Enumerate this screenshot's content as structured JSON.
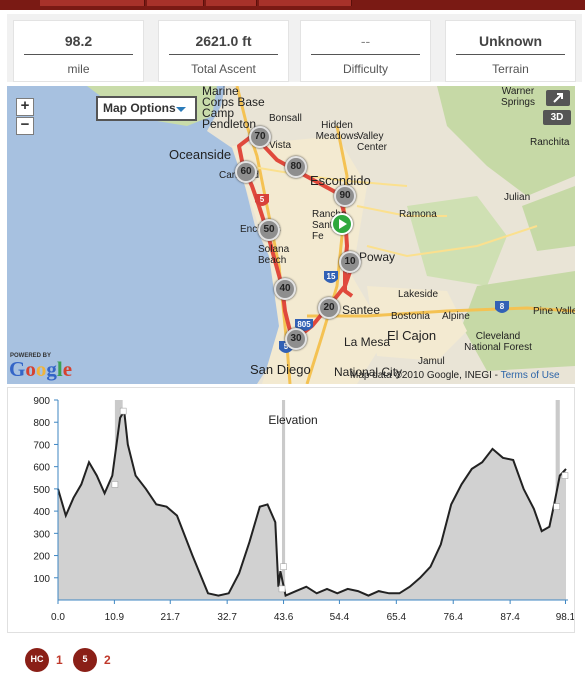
{
  "stats": [
    {
      "value": "98.2",
      "label": "mile"
    },
    {
      "value": "2621.0 ft",
      "label": "Total Ascent"
    },
    {
      "value": "--",
      "label": "Difficulty"
    },
    {
      "value": "Unknown",
      "label": "Terrain"
    }
  ],
  "map": {
    "options_label": "Map Options",
    "zoom_in": "+",
    "zoom_out": "−",
    "btn_3d": "3D",
    "powered_by": "POWERED BY",
    "google": "Google",
    "attribution": "Map data ©2010 Google, INEGI - ",
    "terms": "Terms of Use",
    "labels": [
      "Marine Corps Base Camp Pendleton",
      "Bonsall",
      "Warner Springs",
      "Oceanside",
      "Vista",
      "Hidden Meadows",
      "Valley Center",
      "Ranchita",
      "Carlsbad",
      "Escondido",
      "Julian",
      "Encinitas",
      "Rancho Santa Fe",
      "Ramona",
      "Solana Beach",
      "Poway",
      "Lakeside",
      "Santee",
      "Bostonia",
      "Alpine",
      "Pine Valley",
      "El Cajon",
      "Cleveland National Forest",
      "La Mesa",
      "Jamul",
      "San Diego",
      "National City"
    ],
    "markers": [
      "70",
      "80",
      "60",
      "90",
      "50",
      "10",
      "40",
      "20",
      "30"
    ],
    "highway_shields": [
      "5",
      "15",
      "805",
      "8",
      "5"
    ]
  },
  "chart_data": {
    "type": "area",
    "title": "Elevation",
    "xlabel": "",
    "ylabel": "",
    "xlim": [
      0,
      98.2
    ],
    "ylim": [
      0,
      900
    ],
    "x_ticks": [
      "0.0",
      "10.9",
      "21.7",
      "32.7",
      "43.6",
      "54.4",
      "65.4",
      "76.4",
      "87.4",
      "98.1"
    ],
    "y_ticks": [
      "100",
      "200",
      "300",
      "400",
      "500",
      "600",
      "700",
      "800",
      "900"
    ],
    "grid": false,
    "series": [
      {
        "x": [
          0,
          1.5,
          3,
          4.5,
          6,
          7.5,
          9,
          10.5,
          12,
          12.8,
          13.5,
          15,
          17,
          19,
          21,
          23,
          26,
          29,
          31,
          33,
          35,
          37,
          39,
          40.5,
          42,
          42.6,
          43,
          44,
          46,
          48,
          50,
          52,
          54,
          56,
          58,
          60,
          62,
          64,
          66,
          68,
          70,
          72,
          74,
          76,
          78,
          80,
          82,
          84,
          86,
          88,
          90,
          92,
          93.5,
          95,
          96,
          97,
          98.2
        ],
        "y": [
          500,
          380,
          460,
          520,
          620,
          560,
          480,
          560,
          820,
          850,
          700,
          560,
          500,
          430,
          420,
          380,
          200,
          30,
          20,
          30,
          120,
          260,
          420,
          430,
          350,
          60,
          130,
          20,
          40,
          60,
          30,
          50,
          30,
          50,
          40,
          20,
          40,
          30,
          30,
          60,
          100,
          150,
          250,
          430,
          520,
          590,
          620,
          680,
          640,
          630,
          500,
          410,
          310,
          330,
          440,
          560,
          590
        ]
      }
    ],
    "markers": [
      {
        "x": 11,
        "y": 520
      },
      {
        "x": 12.6,
        "y": 850
      },
      {
        "x": 43.6,
        "y": 150
      },
      {
        "x": 43.3,
        "y": 50
      },
      {
        "x": 96.4,
        "y": 420
      },
      {
        "x": 98.0,
        "y": 560
      }
    ],
    "climb_bands": [
      [
        11.0,
        12.5
      ],
      [
        43.3,
        43.9
      ],
      [
        96.2,
        97.0
      ]
    ]
  },
  "climbs": [
    {
      "badge": "HC",
      "count": "1"
    },
    {
      "badge": "5",
      "count": "2"
    }
  ],
  "colors": {
    "accent": "#7a1a14",
    "route": "#e0493c",
    "area_fill": "#d1d1d1",
    "area_line": "#222222",
    "axis": "#3e86c2",
    "start_marker": "#2fa83d"
  }
}
